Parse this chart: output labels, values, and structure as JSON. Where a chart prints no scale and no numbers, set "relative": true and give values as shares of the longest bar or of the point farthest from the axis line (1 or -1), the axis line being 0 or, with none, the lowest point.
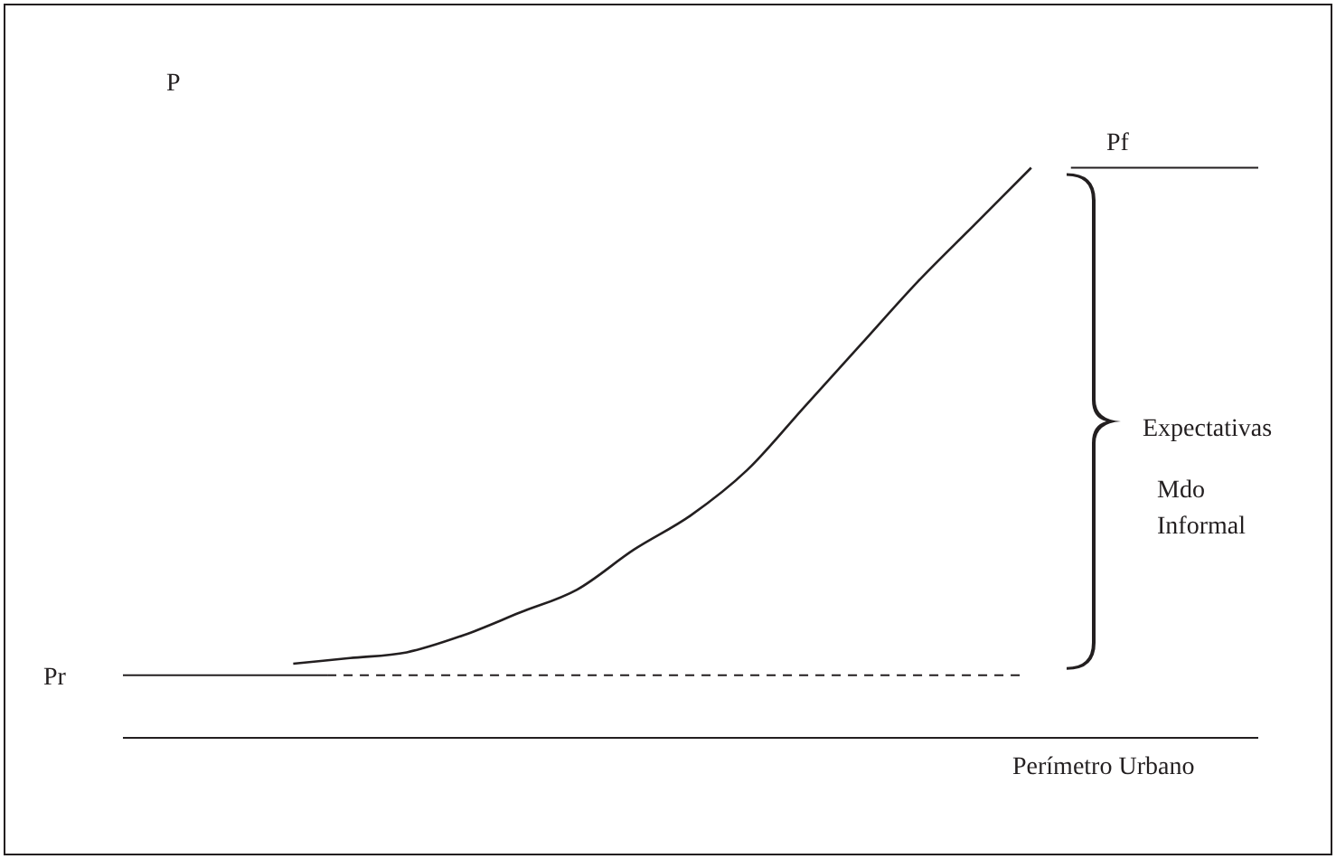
{
  "chart_data": {
    "type": "line",
    "relative": true,
    "ylabel": "P",
    "xlabel": "Perímetro Urbano",
    "marker": "none",
    "line_style": "solid",
    "categories": [
      null,
      null,
      null,
      null,
      null,
      null,
      null,
      null,
      null,
      null,
      null,
      null,
      null,
      null,
      null,
      null,
      null,
      null,
      null,
      null,
      null
    ],
    "series": [
      {
        "color": "#231f20",
        "values": [
          null,
          null,
          null,
          0.13,
          0.14,
          0.15,
          0.18,
          0.22,
          0.26,
          0.33,
          0.39,
          0.47,
          0.58,
          0.69,
          0.8,
          0.9,
          1,
          null,
          null,
          null,
          null
        ]
      }
    ],
    "ref_lines": [
      {
        "axis": "y",
        "value": 0.11,
        "label": "Pr",
        "line_style": "solid",
        "color": "#231f20"
      },
      {
        "axis": "y",
        "value": 0.11,
        "line_style": "dashed",
        "color": "#231f20"
      },
      {
        "axis": "y",
        "value": 1,
        "label": "Pf",
        "line_style": "solid",
        "color": "#231f20"
      }
    ],
    "annotations": [
      "Expectativas",
      "Mdo Informal"
    ]
  }
}
